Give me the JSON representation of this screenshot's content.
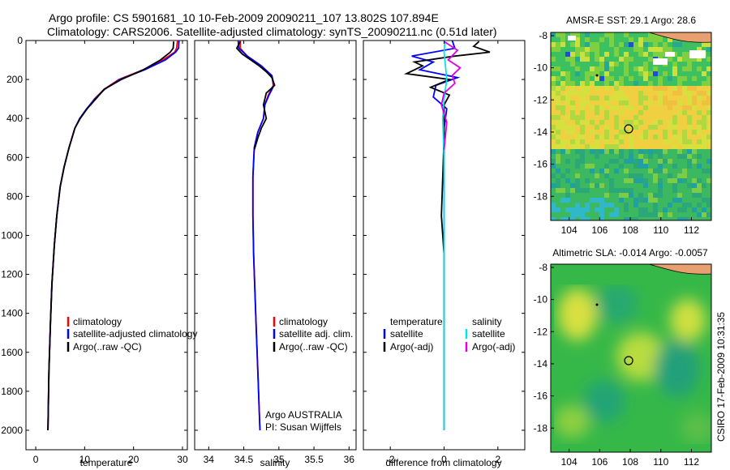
{
  "title": {
    "line1": "Argo profile: CS 5901681_10 10-Feb-2009 20090211_107 13.802S 107.894E",
    "line2": "Climatology: CARS2006. Satellite-adjusted climatology: synTS_20090211.nc (0.51d later)"
  },
  "side_label": "CSIRO 17-Feb-2009 10:31:35",
  "colors": {
    "clim": "#ff0000",
    "sat": "#0000ff",
    "argo": "#000000",
    "sal_sat": "#00e5e5",
    "sal_argo": "#e000e0"
  },
  "chart_data": [
    {
      "type": "line",
      "id": "temperature",
      "xlabel": "temperature",
      "xlim": [
        -2,
        31
      ],
      "ylim": [
        0,
        2100
      ],
      "xticks": [
        0,
        10,
        20,
        30
      ],
      "yticks": [
        0,
        200,
        400,
        600,
        800,
        1000,
        1200,
        1400,
        1600,
        1800,
        2000
      ],
      "legend": [
        "climatology",
        "satellite-adjusted climatology",
        "Argo(..raw -QC)"
      ],
      "series": [
        {
          "name": "climatology",
          "color": "#ff0000",
          "x": [
            29.0,
            28.8,
            28.4,
            26,
            22,
            17,
            14,
            12,
            10.5,
            9,
            8,
            6.8,
            5.8,
            5,
            4.3,
            3.8,
            3.3,
            3,
            2.7,
            2.5
          ],
          "y": [
            0,
            40,
            60,
            100,
            150,
            200,
            250,
            300,
            350,
            400,
            450,
            550,
            650,
            750,
            900,
            1050,
            1250,
            1450,
            1700,
            2000
          ]
        },
        {
          "name": "satellite-adjusted",
          "color": "#0000ff",
          "x": [
            29.3,
            29.2,
            28.6,
            26.5,
            22.3,
            17.2,
            14.1,
            12.1,
            10.4,
            9,
            8,
            6.8,
            5.8,
            5,
            4.3,
            3.8,
            3.3,
            3,
            2.7,
            2.5
          ],
          "y": [
            0,
            40,
            60,
            100,
            150,
            200,
            250,
            300,
            350,
            400,
            450,
            550,
            650,
            750,
            900,
            1050,
            1250,
            1450,
            1700,
            2000
          ]
        },
        {
          "name": "Argo",
          "color": "#000000",
          "x": [
            28.2,
            28.1,
            27.5,
            25.5,
            22,
            17.5,
            14,
            12.3,
            10.5,
            9.1,
            8,
            6.8,
            5.8,
            5,
            4.3,
            3.8,
            3.3,
            3,
            2.7,
            2.5
          ],
          "y": [
            5,
            40,
            60,
            100,
            150,
            200,
            250,
            300,
            350,
            400,
            450,
            550,
            650,
            750,
            900,
            1050,
            1250,
            1450,
            1700,
            2000
          ]
        }
      ]
    },
    {
      "type": "line",
      "id": "salinity",
      "xlabel": "salinity",
      "xlim": [
        33.8,
        36.1
      ],
      "ylim": [
        0,
        2100
      ],
      "xticks": [
        34,
        34.5,
        35,
        35.5,
        36
      ],
      "legend": [
        "climatology",
        "satellite adj. clim.",
        "Argo(..raw -QC)"
      ],
      "annotation": [
        "Argo AUSTRALIA",
        "PI: Susan Wijffels"
      ],
      "series": [
        {
          "name": "climatology",
          "color": "#ff0000",
          "x": [
            34.45,
            34.45,
            34.55,
            34.75,
            34.9,
            34.92,
            34.85,
            34.8,
            34.78,
            34.7,
            34.65,
            34.63,
            34.63,
            34.64,
            34.66,
            34.68,
            34.7,
            34.72,
            34.73
          ],
          "y": [
            0,
            40,
            80,
            130,
            180,
            230,
            280,
            330,
            400,
            470,
            550,
            700,
            900,
            1100,
            1300,
            1500,
            1700,
            1900,
            2000
          ]
        },
        {
          "name": "satellite-adjusted",
          "color": "#0000ff",
          "x": [
            34.42,
            34.43,
            34.55,
            34.75,
            34.9,
            34.93,
            34.86,
            34.8,
            34.78,
            34.7,
            34.65,
            34.63,
            34.63,
            34.64,
            34.66,
            34.68,
            34.7,
            34.72,
            34.73
          ],
          "y": [
            0,
            40,
            80,
            130,
            180,
            230,
            280,
            330,
            400,
            470,
            550,
            700,
            900,
            1100,
            1300,
            1500,
            1700,
            1900,
            2000
          ]
        },
        {
          "name": "Argo",
          "color": "#000000",
          "x": [
            34.45,
            34.4,
            34.48,
            34.6,
            34.72,
            34.82,
            34.9,
            34.94,
            34.82,
            34.78,
            34.82,
            34.75,
            34.7,
            34.65
          ],
          "y": [
            5,
            40,
            70,
            100,
            130,
            160,
            190,
            230,
            270,
            330,
            400,
            450,
            500,
            560
          ]
        }
      ]
    },
    {
      "type": "line",
      "id": "difference",
      "xlabel": "difference from climatology",
      "xlim": [
        -3,
        3
      ],
      "ylim": [
        0,
        2100
      ],
      "xticks": [
        -2,
        0,
        2
      ],
      "legend": {
        "temperature_header": "temperature",
        "salinity_header": "salinity",
        "temperature": [
          "satellite",
          "Argo(-adj)"
        ],
        "salinity": [
          "satellite",
          "Argo(-adj)"
        ]
      },
      "series": [
        {
          "name": "temperature satellite",
          "color": "#0000ff",
          "x": [
            0.3,
            0.4,
            -1.2,
            -0.4,
            -0.9,
            0.5,
            -0.3,
            -0.4,
            0.1,
            0,
            0,
            0,
            0
          ],
          "y": [
            0,
            40,
            80,
            110,
            150,
            190,
            230,
            290,
            350,
            450,
            700,
            1200,
            2000
          ]
        },
        {
          "name": "temperature Argo",
          "color": "#000000",
          "x": [
            1.3,
            1.1,
            1.7,
            0.4,
            -1.1,
            -0.8,
            -1.4,
            0.2,
            -0.5,
            0.2,
            0,
            0,
            -0.1,
            0,
            0,
            0
          ],
          "y": [
            5,
            30,
            60,
            80,
            110,
            130,
            170,
            200,
            240,
            280,
            330,
            500,
            900,
            1100,
            1500,
            2000
          ]
        },
        {
          "name": "salinity satellite",
          "color": "#00e5e5",
          "x": [
            0.03,
            0,
            0.05,
            0.1,
            0,
            -0.05,
            0,
            0,
            0,
            0
          ],
          "y": [
            0,
            60,
            130,
            200,
            300,
            400,
            600,
            1000,
            1500,
            2000
          ]
        },
        {
          "name": "salinity Argo",
          "color": "#e000e0",
          "x": [
            0,
            0.5,
            0.15,
            0.6,
            0.3,
            0.4,
            0,
            -0.1,
            0.1,
            0
          ],
          "y": [
            5,
            50,
            100,
            140,
            180,
            220,
            270,
            330,
            420,
            560
          ]
        }
      ]
    },
    {
      "type": "heatmap",
      "id": "sst_map",
      "title": "AMSR-E SST: 29.1 Argo: 28.6",
      "xlim": [
        102.8,
        113.3
      ],
      "ylim": [
        -19.5,
        -7.8
      ],
      "xticks": [
        104,
        106,
        108,
        110,
        112
      ],
      "yticks": [
        -8,
        -10,
        -12,
        -14,
        -16,
        -18
      ],
      "marker": {
        "lon": 107.894,
        "lat": -13.802
      }
    },
    {
      "type": "heatmap",
      "id": "sla_map",
      "title": "Altimetric SLA: -0.014 Argo: -0.0057",
      "xlim": [
        102.8,
        113.3
      ],
      "ylim": [
        -19.5,
        -7.8
      ],
      "xticks": [
        104,
        106,
        108,
        110,
        112
      ],
      "yticks": [
        -8,
        -10,
        -12,
        -14,
        -16,
        -18
      ],
      "marker": {
        "lon": 107.894,
        "lat": -13.802
      }
    }
  ]
}
